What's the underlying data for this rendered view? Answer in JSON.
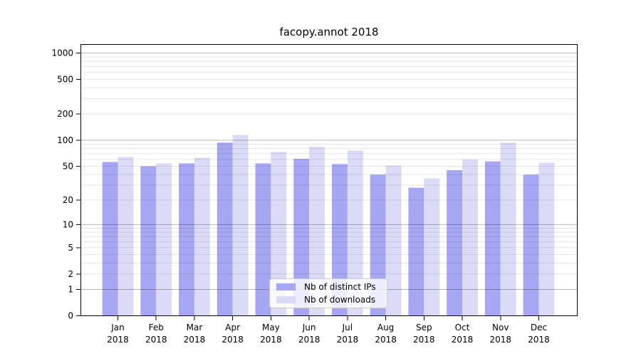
{
  "title": "facopy.annot 2018",
  "chart_data": {
    "type": "bar",
    "title": "facopy.annot 2018",
    "categories": [
      "Jan",
      "Feb",
      "Mar",
      "Apr",
      "May",
      "Jun",
      "Jul",
      "Aug",
      "Sep",
      "Oct",
      "Nov",
      "Dec"
    ],
    "year_label": "2018",
    "series": [
      {
        "name": "Nb of distinct IPs",
        "color": "#a6a6f2",
        "values": [
          56,
          50,
          54,
          94,
          54,
          61,
          53,
          40,
          28,
          45,
          57,
          40
        ]
      },
      {
        "name": "Nb of downloads",
        "color": "#dbdbf8",
        "values": [
          64,
          54,
          63,
          115,
          73,
          84,
          76,
          51,
          36,
          60,
          94,
          55
        ]
      }
    ],
    "xlabel": "",
    "ylabel": "",
    "y_ticks": [
      0,
      1,
      2,
      5,
      10,
      20,
      50,
      100,
      200,
      500,
      1000
    ],
    "y_scale": "pseudo-log: position proportional to log10(1+value), 0 at baseline",
    "ylim": [
      0,
      1250
    ],
    "grid": true,
    "legend_position": "lower center"
  },
  "colors": {
    "bar_distinct_ips": "#a6a6f2",
    "bar_downloads": "#dbdbf8",
    "grid_major": "rgba(0,0,0,0.28)",
    "grid_minor": "rgba(0,0,0,0.10)",
    "spine": "#000000",
    "text": "#000000",
    "legend_border": "#cbcbcb",
    "background": "#ffffff"
  }
}
